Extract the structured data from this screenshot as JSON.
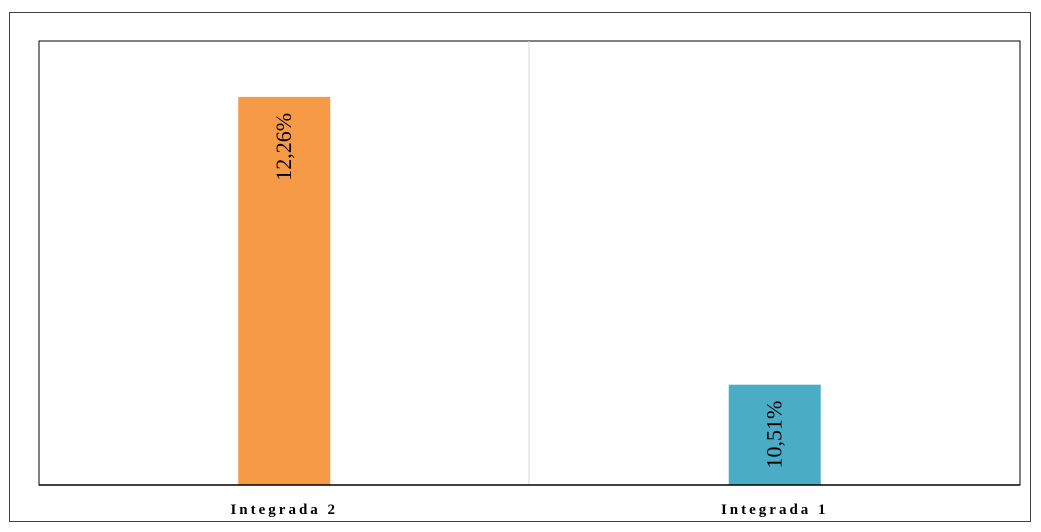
{
  "chart_data": {
    "type": "bar",
    "categories": [
      "Integrada 2",
      "Integrada 1"
    ],
    "values": [
      12.26,
      10.51
    ],
    "value_labels": [
      "12,26%",
      "10,51%"
    ],
    "colors": [
      "#F79A48",
      "#4BACC6"
    ],
    "ylim": [
      9.9,
      12.6
    ],
    "grid": false
  }
}
